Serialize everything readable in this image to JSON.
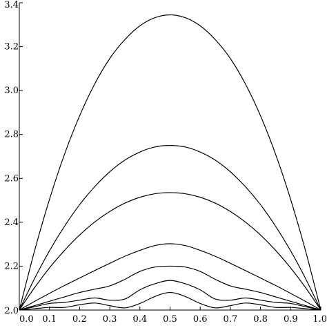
{
  "chart_data": {
    "type": "line",
    "title": "",
    "xlabel": "",
    "ylabel": "",
    "xlim": [
      0.0,
      1.0
    ],
    "ylim": [
      2.0,
      3.4
    ],
    "grid": false,
    "legend": "none",
    "x_ticks": [
      "0.0",
      "0.1",
      "0.2",
      "0.3",
      "0.4",
      "0.5",
      "0.6",
      "0.7",
      "0.8",
      "0.9",
      "1.0"
    ],
    "y_ticks": [
      "2.0",
      "2.2",
      "2.4",
      "2.6",
      "2.8",
      "3.0",
      "3.2",
      "3.4"
    ],
    "x": [
      0.0,
      0.05,
      0.1,
      0.15,
      0.2,
      0.25,
      0.3,
      0.35,
      0.4,
      0.45,
      0.5,
      0.55,
      0.6,
      0.65,
      0.7,
      0.75,
      0.8,
      0.85,
      0.9,
      0.95,
      1.0
    ],
    "series": [
      {
        "values": [
          2.0,
          2.267,
          2.504,
          2.71,
          2.885,
          3.03,
          3.146,
          3.232,
          3.295,
          3.332,
          3.345,
          3.332,
          3.295,
          3.232,
          3.146,
          3.03,
          2.885,
          2.71,
          2.504,
          2.267,
          2.0
        ]
      },
      {
        "values": [
          2.0,
          2.142,
          2.27,
          2.382,
          2.48,
          2.562,
          2.63,
          2.683,
          2.72,
          2.743,
          2.75,
          2.743,
          2.72,
          2.683,
          2.63,
          2.562,
          2.48,
          2.382,
          2.27,
          2.142,
          2.0
        ]
      },
      {
        "values": [
          2.0,
          2.101,
          2.192,
          2.272,
          2.342,
          2.401,
          2.449,
          2.487,
          2.514,
          2.53,
          2.535,
          2.53,
          2.514,
          2.487,
          2.449,
          2.401,
          2.342,
          2.272,
          2.192,
          2.101,
          2.0
        ]
      },
      {
        "values": [
          2.0,
          2.039,
          2.076,
          2.112,
          2.146,
          2.18,
          2.213,
          2.245,
          2.272,
          2.294,
          2.302,
          2.294,
          2.272,
          2.245,
          2.213,
          2.18,
          2.146,
          2.112,
          2.076,
          2.039,
          2.0
        ]
      },
      {
        "values": [
          2.0,
          2.02,
          2.04,
          2.06,
          2.08,
          2.095,
          2.11,
          2.14,
          2.176,
          2.196,
          2.2,
          2.196,
          2.176,
          2.14,
          2.11,
          2.095,
          2.08,
          2.06,
          2.04,
          2.02,
          2.0
        ]
      },
      {
        "values": [
          2.0,
          2.015,
          2.03,
          2.035,
          2.045,
          2.055,
          2.045,
          2.05,
          2.092,
          2.12,
          2.135,
          2.12,
          2.092,
          2.05,
          2.045,
          2.055,
          2.045,
          2.035,
          2.03,
          2.015,
          2.0
        ]
      },
      {
        "values": [
          2.0,
          2.006,
          2.012,
          2.012,
          2.024,
          2.032,
          2.02,
          2.01,
          2.03,
          2.062,
          2.08,
          2.062,
          2.03,
          2.01,
          2.02,
          2.032,
          2.024,
          2.012,
          2.012,
          2.006,
          2.0
        ]
      }
    ]
  }
}
